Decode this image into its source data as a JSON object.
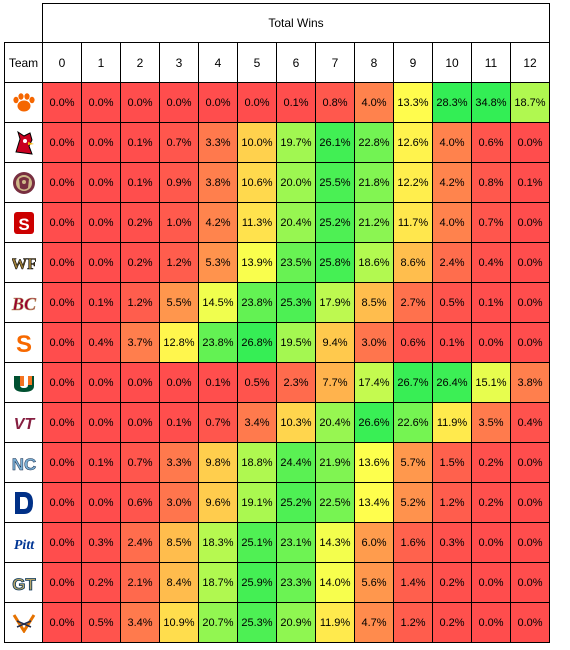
{
  "chart_data": {
    "type": "heatmap",
    "title": "Total Wins",
    "row_header": "Team",
    "columns": [
      "0",
      "1",
      "2",
      "3",
      "4",
      "5",
      "6",
      "7",
      "8",
      "9",
      "10",
      "11",
      "12"
    ],
    "color_scale": {
      "low": "#ff4d4d",
      "mid": "#ffff4d",
      "high": "#33ee55"
    },
    "rows": [
      {
        "team_icon": "clemson-paw-logo-icon",
        "values": [
          "0.0%",
          "0.0%",
          "0.0%",
          "0.0%",
          "0.0%",
          "0.0%",
          "0.1%",
          "0.8%",
          "4.0%",
          "13.3%",
          "28.3%",
          "34.8%",
          "18.7%"
        ]
      },
      {
        "team_icon": "louisville-cardinal-logo-icon",
        "values": [
          "0.0%",
          "0.0%",
          "0.1%",
          "0.7%",
          "3.3%",
          "10.0%",
          "19.7%",
          "26.1%",
          "22.8%",
          "12.6%",
          "4.0%",
          "0.6%",
          "0.0%"
        ]
      },
      {
        "team_icon": "florida-state-seminole-logo-icon",
        "values": [
          "0.0%",
          "0.0%",
          "0.1%",
          "0.9%",
          "3.8%",
          "10.6%",
          "20.0%",
          "25.5%",
          "21.8%",
          "12.2%",
          "4.2%",
          "0.8%",
          "0.1%"
        ]
      },
      {
        "team_icon": "nc-state-logo-icon",
        "values": [
          "0.0%",
          "0.0%",
          "0.2%",
          "1.0%",
          "4.2%",
          "11.3%",
          "20.4%",
          "25.2%",
          "21.2%",
          "11.7%",
          "4.0%",
          "0.7%",
          "0.0%"
        ]
      },
      {
        "team_icon": "wake-forest-logo-icon",
        "values": [
          "0.0%",
          "0.0%",
          "0.2%",
          "1.2%",
          "5.3%",
          "13.9%",
          "23.5%",
          "25.8%",
          "18.6%",
          "8.6%",
          "2.4%",
          "0.4%",
          "0.0%"
        ]
      },
      {
        "team_icon": "boston-college-logo-icon",
        "values": [
          "0.0%",
          "0.1%",
          "1.2%",
          "5.5%",
          "14.5%",
          "23.8%",
          "25.3%",
          "17.9%",
          "8.5%",
          "2.7%",
          "0.5%",
          "0.1%",
          "0.0%"
        ]
      },
      {
        "team_icon": "syracuse-logo-icon",
        "values": [
          "0.0%",
          "0.4%",
          "3.7%",
          "12.8%",
          "23.8%",
          "26.8%",
          "19.5%",
          "9.4%",
          "3.0%",
          "0.6%",
          "0.1%",
          "0.0%",
          "0.0%"
        ]
      },
      {
        "team_icon": "miami-u-logo-icon",
        "values": [
          "0.0%",
          "0.0%",
          "0.0%",
          "0.0%",
          "0.1%",
          "0.5%",
          "2.3%",
          "7.7%",
          "17.4%",
          "26.7%",
          "26.4%",
          "15.1%",
          "3.8%"
        ]
      },
      {
        "team_icon": "virginia-tech-logo-icon",
        "values": [
          "0.0%",
          "0.0%",
          "0.0%",
          "0.1%",
          "0.7%",
          "3.4%",
          "10.3%",
          "20.4%",
          "26.6%",
          "22.6%",
          "11.9%",
          "3.5%",
          "0.4%"
        ]
      },
      {
        "team_icon": "north-carolina-logo-icon",
        "values": [
          "0.0%",
          "0.1%",
          "0.7%",
          "3.3%",
          "9.8%",
          "18.8%",
          "24.4%",
          "21.9%",
          "13.6%",
          "5.7%",
          "1.5%",
          "0.2%",
          "0.0%"
        ]
      },
      {
        "team_icon": "duke-logo-icon",
        "values": [
          "0.0%",
          "0.0%",
          "0.6%",
          "3.0%",
          "9.6%",
          "19.1%",
          "25.2%",
          "22.5%",
          "13.4%",
          "5.2%",
          "1.2%",
          "0.2%",
          "0.0%"
        ]
      },
      {
        "team_icon": "pitt-logo-icon",
        "values": [
          "0.0%",
          "0.3%",
          "2.4%",
          "8.5%",
          "18.3%",
          "25.1%",
          "23.1%",
          "14.3%",
          "6.0%",
          "1.6%",
          "0.3%",
          "0.0%",
          "0.0%"
        ]
      },
      {
        "team_icon": "georgia-tech-logo-icon",
        "values": [
          "0.0%",
          "0.2%",
          "2.1%",
          "8.4%",
          "18.7%",
          "25.9%",
          "23.3%",
          "14.0%",
          "5.6%",
          "1.4%",
          "0.2%",
          "0.0%",
          "0.0%"
        ]
      },
      {
        "team_icon": "virginia-logo-icon",
        "values": [
          "0.0%",
          "0.5%",
          "3.4%",
          "10.9%",
          "20.7%",
          "25.3%",
          "20.9%",
          "11.9%",
          "4.7%",
          "1.2%",
          "0.2%",
          "0.0%",
          "0.0%"
        ]
      }
    ]
  }
}
